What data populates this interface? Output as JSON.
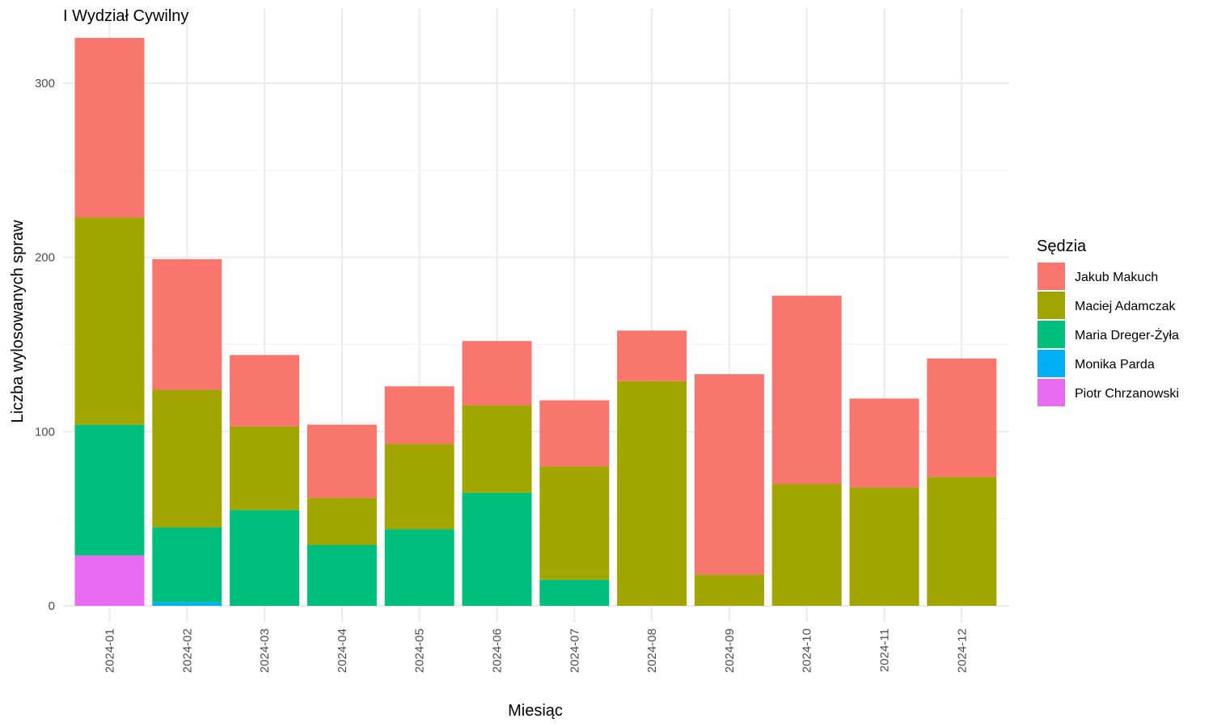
{
  "chart_data": {
    "type": "bar",
    "stacked": true,
    "title": "I Wydział Cywilny",
    "xlabel": "Miesiąc",
    "ylabel": "Liczba wylosowanych spraw",
    "ylim": [
      0,
      330
    ],
    "yticks": [
      0,
      100,
      200,
      300
    ],
    "grid": true,
    "legend_title": "Sędzia",
    "legend_position": "right",
    "categories": [
      "2024-01",
      "2024-02",
      "2024-03",
      "2024-04",
      "2024-05",
      "2024-06",
      "2024-07",
      "2024-08",
      "2024-09",
      "2024-10",
      "2024-11",
      "2024-12"
    ],
    "series": [
      {
        "name": "Jakub Makuch",
        "color": "#F8766D",
        "values": [
          103,
          75,
          41,
          42,
          33,
          37,
          38,
          29,
          115,
          108,
          51,
          68
        ]
      },
      {
        "name": "Maciej Adamczak",
        "color": "#A3A500",
        "values": [
          119,
          79,
          48,
          27,
          49,
          50,
          65,
          129,
          18,
          70,
          68,
          74
        ]
      },
      {
        "name": "Maria Dreger-Żyła",
        "color": "#00BF7D",
        "values": [
          75,
          43,
          55,
          35,
          44,
          65,
          15,
          0,
          0,
          0,
          0,
          0
        ]
      },
      {
        "name": "Monika Parda",
        "color": "#00B0F6",
        "values": [
          0,
          2,
          0,
          0,
          0,
          0,
          0,
          0,
          0,
          0,
          0,
          0
        ]
      },
      {
        "name": "Piotr Chrzanowski",
        "color": "#E76BF3",
        "values": [
          29,
          0,
          0,
          0,
          0,
          0,
          0,
          0,
          0,
          0,
          0,
          0
        ]
      }
    ]
  }
}
